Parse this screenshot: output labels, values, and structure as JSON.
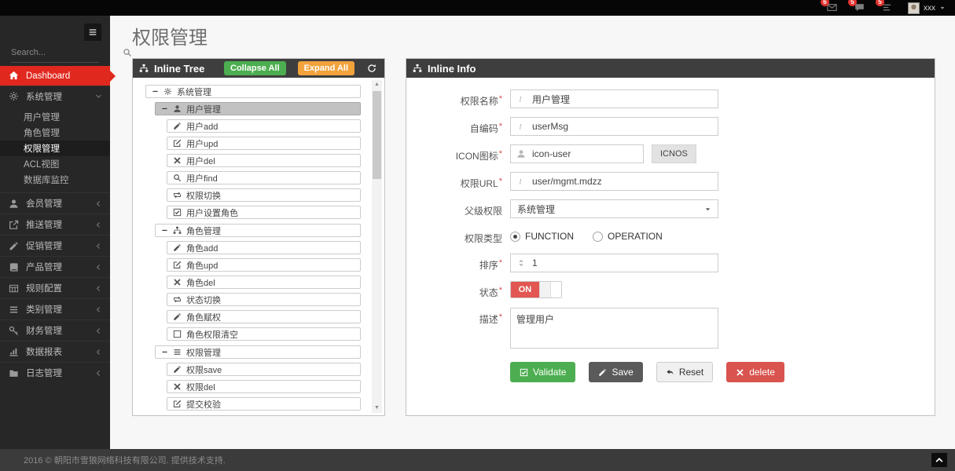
{
  "colors": {
    "topbar_bg": "#060606",
    "sidebar_bg": "#272727",
    "accent_red": "#e0281e",
    "panel_header_bg": "#3e3e3e",
    "green": "#4cae50",
    "orange": "#f2a33c",
    "btn_dark": "#5a5a5a",
    "btn_light": "#f0f0f0",
    "btn_red": "#d9534f",
    "toggle_on": "#e25752",
    "badge_red": "#e53430",
    "selected_row": "#c2c2c2"
  },
  "topbar": {
    "notifications": [
      {
        "name": "messages",
        "icon": "envelope",
        "count": "6"
      },
      {
        "name": "alerts",
        "icon": "comments",
        "count": "5"
      },
      {
        "name": "tasks",
        "icon": "tasks",
        "count": "5"
      }
    ],
    "user_name": "xxx"
  },
  "sidebar": {
    "search_placeholder": "Search...",
    "menu": [
      {
        "name": "dashboard",
        "label": "Dashboard",
        "icon": "home",
        "variant": "active-red"
      },
      {
        "name": "system-mgmt",
        "label": "系统管理",
        "icon": "cogs",
        "variant": "expanded",
        "children": [
          {
            "name": "user-mgmt",
            "label": "用户管理"
          },
          {
            "name": "role-mgmt",
            "label": "角色管理"
          },
          {
            "name": "permission-mgmt",
            "label": "权限管理",
            "active": true
          },
          {
            "name": "acl-view",
            "label": "ACL视图"
          },
          {
            "name": "db-monitor",
            "label": "数据库监控"
          }
        ]
      },
      {
        "name": "member-mgmt",
        "label": "会员管理",
        "icon": "user"
      },
      {
        "name": "push-mgmt",
        "label": "推送管理",
        "icon": "share"
      },
      {
        "name": "promo-mgmt",
        "label": "促销管理",
        "icon": "pencil"
      },
      {
        "name": "product-mgmt",
        "label": "产品管理",
        "icon": "book"
      },
      {
        "name": "rule-config",
        "label": "规则配置",
        "icon": "table"
      },
      {
        "name": "category-mgmt",
        "label": "类别管理",
        "icon": "list"
      },
      {
        "name": "finance-mgmt",
        "label": "财务管理",
        "icon": "key"
      },
      {
        "name": "data-report",
        "label": "数据报表",
        "icon": "chart"
      },
      {
        "name": "log-mgmt",
        "label": "日志管理",
        "icon": "folder"
      }
    ]
  },
  "page_title": "权限管理",
  "tree_panel": {
    "title": "Inline Tree",
    "buttons": {
      "collapse": "Collapse All",
      "expand": "Expand All"
    },
    "nodes": [
      {
        "level": 0,
        "icon": "cogs",
        "label": "系统管理",
        "toggle": true
      },
      {
        "level": 1,
        "icon": "user",
        "label": "用户管理",
        "toggle": true,
        "selected": true
      },
      {
        "level": 2,
        "icon": "pencil",
        "label": "用户add"
      },
      {
        "level": 2,
        "icon": "edit",
        "label": "用户upd"
      },
      {
        "level": 2,
        "icon": "times",
        "label": "用户del"
      },
      {
        "level": 2,
        "icon": "search",
        "label": "用户find"
      },
      {
        "level": 2,
        "icon": "retweet",
        "label": "权限切换"
      },
      {
        "level": 2,
        "icon": "check-square",
        "label": "用户设置角色"
      },
      {
        "level": 1,
        "icon": "sitemap",
        "label": "角色管理",
        "toggle": true,
        "gap": true
      },
      {
        "level": 2,
        "icon": "pencil",
        "label": "角色add"
      },
      {
        "level": 2,
        "icon": "edit",
        "label": "角色upd"
      },
      {
        "level": 2,
        "icon": "times",
        "label": "角色del"
      },
      {
        "level": 2,
        "icon": "retweet",
        "label": "状态切换"
      },
      {
        "level": 2,
        "icon": "pencil",
        "label": "角色赋权"
      },
      {
        "level": 2,
        "icon": "square",
        "label": "角色权限清空"
      },
      {
        "level": 1,
        "icon": "list",
        "label": "权限管理",
        "toggle": true,
        "gap": true
      },
      {
        "level": 2,
        "icon": "pencil",
        "label": "权限save"
      },
      {
        "level": 2,
        "icon": "times",
        "label": "权限del"
      },
      {
        "level": 2,
        "icon": "edit",
        "label": "提交校验"
      }
    ]
  },
  "info_panel": {
    "title": "Inline Info",
    "fields": [
      {
        "name": "permission-name",
        "label": "权限名称",
        "required": true,
        "type": "text",
        "icon": "italic",
        "value": "用户管理"
      },
      {
        "name": "code",
        "label": "自编码",
        "required": true,
        "type": "text",
        "icon": "italic",
        "value": "userMsg"
      },
      {
        "name": "icon",
        "label": "ICON图标",
        "required": true,
        "type": "text-button",
        "icon": "user",
        "value": "icon-user",
        "button": "ICNOS"
      },
      {
        "name": "url",
        "label": "权限URL",
        "required": true,
        "type": "text",
        "icon": "italic",
        "value": "user/mgmt.mdzz"
      },
      {
        "name": "parent",
        "label": "父级权限",
        "required": false,
        "type": "select",
        "value": "系统管理"
      },
      {
        "name": "type",
        "label": "权限类型",
        "required": false,
        "type": "radio",
        "options": [
          {
            "label": "FUNCTION",
            "checked": true
          },
          {
            "label": "OPERATION",
            "checked": false
          }
        ]
      },
      {
        "name": "sort",
        "label": "排序",
        "required": true,
        "type": "text",
        "icon": "sort",
        "value": "1"
      },
      {
        "name": "status",
        "label": "状态",
        "required": true,
        "type": "toggle",
        "value": "ON"
      },
      {
        "name": "description",
        "label": "描述",
        "required": true,
        "type": "textarea",
        "value": "管理用户"
      }
    ],
    "buttons": [
      {
        "name": "validate",
        "label": "Validate",
        "icon": "check-square",
        "style": "green"
      },
      {
        "name": "save",
        "label": "Save",
        "icon": "pencil",
        "style": "dark"
      },
      {
        "name": "reset",
        "label": "Reset",
        "icon": "reply",
        "style": "light"
      },
      {
        "name": "delete",
        "label": "delete",
        "icon": "times",
        "style": "red"
      }
    ]
  },
  "footer": {
    "copyright": "2016 © 朝阳市雪狼网络科技有限公司. 提供技术支持."
  }
}
